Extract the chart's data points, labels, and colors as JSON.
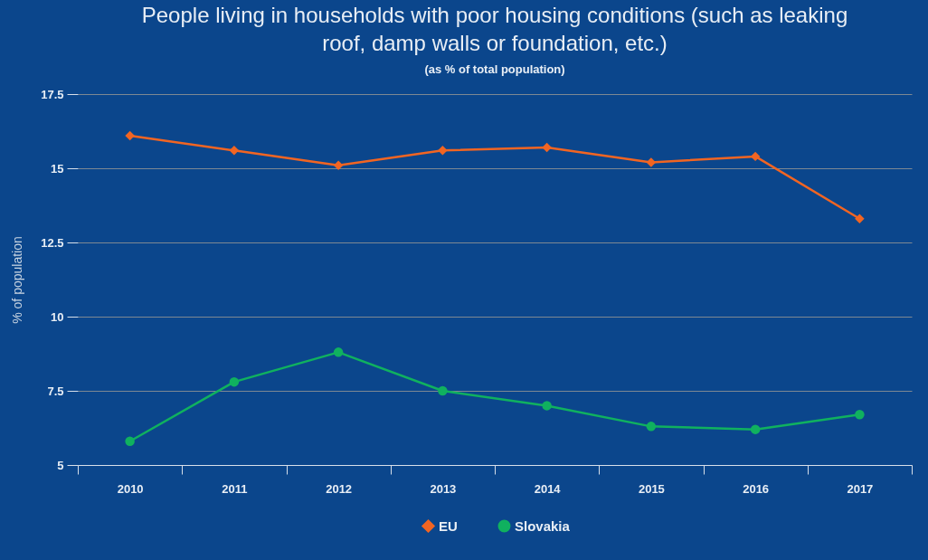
{
  "chart_data": {
    "type": "line",
    "title": "People living in households with poor housing conditions (such as leaking roof, damp walls or foundation, etc.)",
    "subtitle": "(as % of total population)",
    "ylabel": "% of population",
    "categories": [
      "2010",
      "2011",
      "2012",
      "2013",
      "2014",
      "2015",
      "2016",
      "2017"
    ],
    "series": [
      {
        "name": "EU",
        "color": "#f26522",
        "marker": "diamond",
        "values": [
          16.1,
          15.6,
          15.1,
          15.6,
          15.7,
          15.2,
          15.4,
          13.3
        ]
      },
      {
        "name": "Slovakia",
        "color": "#10b15f",
        "marker": "circle",
        "values": [
          5.8,
          7.8,
          8.8,
          7.5,
          7.0,
          6.3,
          6.2,
          6.7
        ]
      }
    ],
    "ylim": [
      5,
      17.5
    ],
    "yticks": [
      5,
      7.5,
      10,
      12.5,
      15,
      17.5
    ],
    "grid": "y",
    "legend": "bottom",
    "line_style": "solid"
  }
}
